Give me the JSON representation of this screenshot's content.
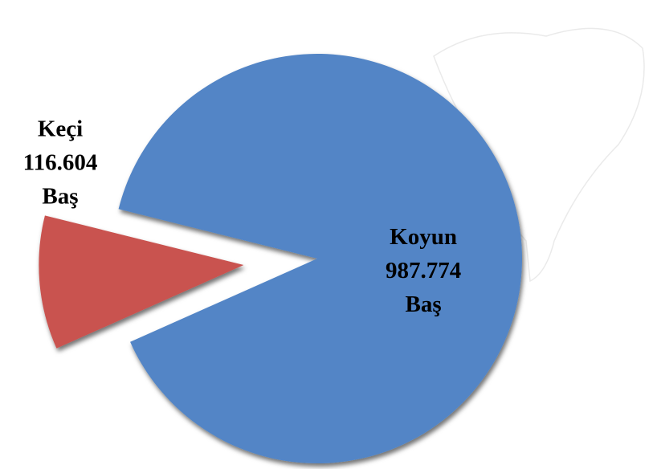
{
  "chart_data": {
    "type": "pie",
    "categories": [
      "Koyun",
      "Keçi"
    ],
    "values": [
      987774,
      116604
    ],
    "value_labels": [
      "987.774",
      "116.604"
    ],
    "unit_label": "Baş",
    "colors": [
      "#5285c6",
      "#c9524f"
    ]
  }
}
